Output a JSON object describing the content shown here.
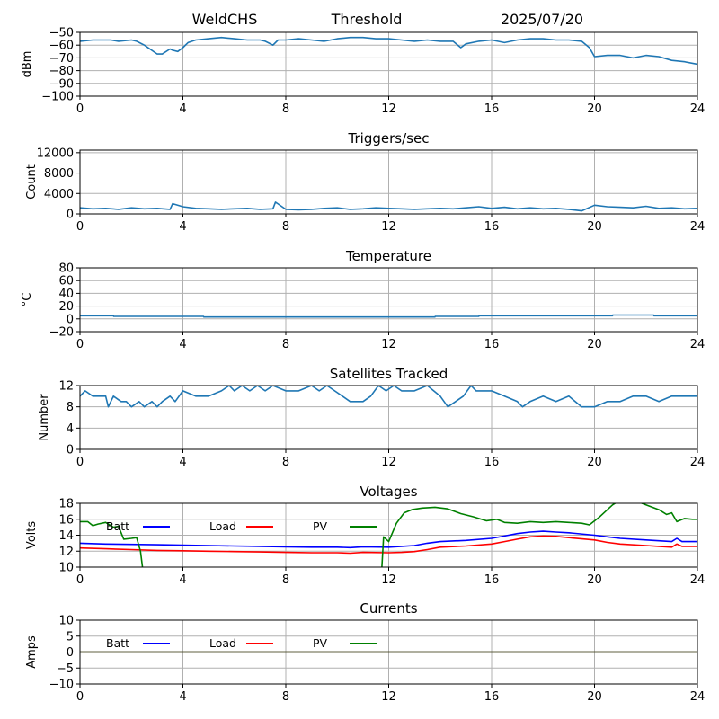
{
  "header": {
    "left": "WeldCHS",
    "center": "Threshold",
    "right": "2025/07/20"
  },
  "colors": {
    "series_blue": "#1f77b4",
    "batt": "#0000ff",
    "load": "#ff0000",
    "pv": "#008000",
    "grid": "#b0b0b0"
  },
  "chart_data": [
    {
      "type": "line",
      "title": "",
      "ylabel": "dBm",
      "ylim": [
        -100,
        -50
      ],
      "yticks": [
        -50,
        -60,
        -70,
        -80,
        -90,
        -100
      ],
      "xlim": [
        0,
        24
      ],
      "xticks": [
        0,
        4,
        8,
        12,
        16,
        20,
        24
      ],
      "grid": true,
      "series": [
        {
          "x": [
            0,
            0.5,
            1,
            1.2,
            1.5,
            2,
            2.2,
            2.5,
            3,
            3.2,
            3.5,
            3.6,
            3.8,
            4,
            4.2,
            4.5,
            5,
            5.5,
            6,
            6.5,
            7,
            7.2,
            7.5,
            7.7,
            8,
            8.5,
            9,
            9.5,
            10,
            10.5,
            11,
            11.5,
            12,
            12.5,
            13,
            13.5,
            14,
            14.5,
            14.8,
            15,
            15.5,
            16,
            16.5,
            17,
            17.5,
            18,
            18.5,
            19,
            19.5,
            19.8,
            20,
            20.5,
            21,
            21.5,
            22,
            22.5,
            23,
            23.5,
            24
          ],
          "values": [
            -57,
            -56,
            -56,
            -56,
            -57,
            -56,
            -57,
            -60,
            -67,
            -67,
            -63,
            -64,
            -65,
            -62,
            -58,
            -56,
            -55,
            -54,
            -55,
            -56,
            -56,
            -57,
            -60,
            -56,
            -56,
            -55,
            -56,
            -57,
            -55,
            -54,
            -54,
            -55,
            -55,
            -56,
            -57,
            -56,
            -57,
            -57,
            -62,
            -59,
            -57,
            -56,
            -58,
            -56,
            -55,
            -55,
            -56,
            -56,
            -57,
            -62,
            -69,
            -68,
            -68,
            -70,
            -68,
            -69,
            -72,
            -73,
            -75
          ]
        }
      ]
    },
    {
      "type": "line",
      "title": "Triggers/sec",
      "ylabel": "Count",
      "ylim": [
        0,
        12500
      ],
      "yticks": [
        0,
        4000,
        8000,
        12000
      ],
      "xlim": [
        0,
        24
      ],
      "xticks": [
        0,
        4,
        8,
        12,
        16,
        20,
        24
      ],
      "grid": true,
      "series": [
        {
          "x": [
            0,
            0.5,
            1,
            1.5,
            2,
            2.5,
            3,
            3.5,
            3.6,
            4,
            4.5,
            5,
            5.5,
            6,
            6.5,
            7,
            7.5,
            7.6,
            8,
            8.5,
            9,
            9.5,
            10,
            10.5,
            11,
            11.5,
            12,
            12.5,
            13,
            13.5,
            14,
            14.5,
            15,
            15.5,
            16,
            16.5,
            17,
            17.5,
            18,
            18.5,
            19,
            19.5,
            20,
            20.5,
            21,
            21.5,
            22,
            22.5,
            23,
            23.5,
            24
          ],
          "values": [
            1200,
            1000,
            1100,
            900,
            1200,
            1000,
            1100,
            900,
            2000,
            1400,
            1100,
            1000,
            900,
            1000,
            1100,
            900,
            1000,
            2300,
            900,
            800,
            900,
            1100,
            1200,
            900,
            1000,
            1200,
            1100,
            1000,
            900,
            1000,
            1100,
            1000,
            1200,
            1400,
            1100,
            1300,
            1000,
            1200,
            1000,
            1100,
            900,
            600,
            1700,
            1400,
            1300,
            1200,
            1500,
            1100,
            1200,
            1000,
            1100
          ]
        }
      ]
    },
    {
      "type": "line",
      "title": "Temperature",
      "ylabel": "°C",
      "ylim": [
        -20,
        80
      ],
      "yticks": [
        -20,
        0,
        20,
        40,
        60,
        80
      ],
      "xlim": [
        0,
        24
      ],
      "xticks": [
        0,
        4,
        8,
        12,
        16,
        20,
        24
      ],
      "grid": true,
      "series": [
        {
          "x": [
            0,
            1.3,
            1.31,
            4.8,
            4.81,
            13.8,
            13.81,
            15.5,
            15.51,
            20.7,
            20.71,
            22.3,
            22.31,
            24
          ],
          "values": [
            5,
            5,
            4,
            4,
            3,
            3,
            4,
            4,
            5,
            5,
            6,
            6,
            5,
            5
          ]
        }
      ]
    },
    {
      "type": "line",
      "title": "Satellites Tracked",
      "ylabel": "Number",
      "ylim": [
        0,
        12
      ],
      "yticks": [
        0,
        4,
        8,
        12
      ],
      "xlim": [
        0,
        24
      ],
      "xticks": [
        0,
        4,
        8,
        12,
        16,
        20,
        24
      ],
      "grid": true,
      "series": [
        {
          "x": [
            0,
            0.2,
            0.5,
            1,
            1.1,
            1.3,
            1.6,
            1.8,
            2,
            2.3,
            2.5,
            2.8,
            3,
            3.2,
            3.5,
            3.7,
            4,
            4.5,
            5,
            5.5,
            5.8,
            6,
            6.3,
            6.6,
            6.9,
            7.2,
            7.5,
            8,
            8.5,
            9,
            9.3,
            9.6,
            9.9,
            10.2,
            10.5,
            11,
            11.3,
            11.6,
            11.9,
            12.2,
            12.5,
            13,
            13.5,
            14,
            14.3,
            14.6,
            14.9,
            15.2,
            15.4,
            15.6,
            16,
            16.5,
            17,
            17.2,
            17.5,
            18,
            18.5,
            19,
            19.5,
            20,
            20.5,
            21,
            21.5,
            22,
            22.5,
            23,
            23.5,
            24
          ],
          "values": [
            10,
            11,
            10,
            10,
            8,
            10,
            9,
            9,
            8,
            9,
            8,
            9,
            8,
            9,
            10,
            9,
            11,
            10,
            10,
            11,
            12,
            11,
            12,
            11,
            12,
            11,
            12,
            11,
            11,
            12,
            11,
            12,
            11,
            10,
            9,
            9,
            10,
            12,
            11,
            12,
            11,
            11,
            12,
            10,
            8,
            9,
            10,
            12,
            11,
            11,
            11,
            10,
            9,
            8,
            9,
            10,
            9,
            10,
            8,
            8,
            9,
            9,
            10,
            10,
            9,
            10,
            10,
            10
          ]
        }
      ]
    },
    {
      "type": "line",
      "title": "Voltages",
      "ylabel": "Volts",
      "ylim": [
        10,
        18
      ],
      "yticks": [
        10,
        12,
        14,
        16,
        18
      ],
      "xlim": [
        0,
        24
      ],
      "xticks": [
        0,
        4,
        8,
        12,
        16,
        20,
        24
      ],
      "grid": true,
      "legend": {
        "placement": "top-left",
        "layout": "horizontal",
        "entries": [
          "Batt",
          "Load",
          "PV"
        ]
      },
      "series": [
        {
          "name": "Batt",
          "color": "#0000ff",
          "x": [
            0,
            1,
            2,
            3,
            4,
            5,
            6,
            7,
            8,
            9,
            10,
            10.5,
            11,
            12,
            12.5,
            13,
            13.5,
            14,
            15,
            16,
            16.5,
            17,
            17.5,
            18,
            18.5,
            19,
            20,
            20.5,
            21,
            22,
            22.5,
            23,
            23.2,
            23.4,
            24
          ],
          "values": [
            13.0,
            12.9,
            12.85,
            12.8,
            12.75,
            12.7,
            12.65,
            12.6,
            12.55,
            12.5,
            12.5,
            12.45,
            12.55,
            12.5,
            12.6,
            12.7,
            13.0,
            13.2,
            13.35,
            13.6,
            13.9,
            14.2,
            14.4,
            14.5,
            14.4,
            14.3,
            14.0,
            13.8,
            13.6,
            13.4,
            13.3,
            13.2,
            13.6,
            13.2,
            13.2
          ]
        },
        {
          "name": "Load",
          "color": "#ff0000",
          "x": [
            0,
            1,
            2,
            3,
            4,
            5,
            6,
            7,
            8,
            9,
            10,
            10.5,
            11,
            12,
            12.5,
            13,
            13.5,
            14,
            15,
            16,
            16.5,
            17,
            17.5,
            18,
            18.5,
            19,
            20,
            20.5,
            21,
            22,
            22.5,
            23,
            23.2,
            23.4,
            24
          ],
          "values": [
            12.4,
            12.3,
            12.2,
            12.1,
            12.05,
            12.0,
            11.95,
            11.9,
            11.85,
            11.8,
            11.8,
            11.75,
            11.85,
            11.8,
            11.85,
            11.95,
            12.2,
            12.5,
            12.65,
            12.9,
            13.2,
            13.5,
            13.8,
            13.9,
            13.85,
            13.7,
            13.4,
            13.1,
            12.9,
            12.7,
            12.6,
            12.5,
            12.9,
            12.6,
            12.6
          ]
        },
        {
          "name": "PV",
          "color": "#008000",
          "x": [
            0,
            0.3,
            0.5,
            0.7,
            1,
            1.3,
            1.5,
            1.7,
            2,
            2.2,
            2.35,
            2.45,
            2.55,
            11.7,
            11.8,
            12.0,
            12.3,
            12.6,
            12.9,
            13.3,
            13.8,
            14.3,
            14.8,
            15.3,
            15.8,
            16.2,
            16.5,
            17,
            17.5,
            18,
            18.5,
            19,
            19.5,
            19.8,
            20.2,
            20.7,
            21.1,
            21.6,
            22,
            22.5,
            22.8,
            23,
            23.2,
            23.5,
            23.8,
            24
          ],
          "values": [
            15.7,
            15.7,
            15.2,
            15.4,
            15.6,
            15.0,
            15.1,
            13.5,
            13.6,
            13.7,
            12.0,
            9.5,
            8.0,
            8.0,
            13.8,
            13.2,
            15.5,
            16.8,
            17.2,
            17.4,
            17.5,
            17.3,
            16.7,
            16.3,
            15.8,
            16.0,
            15.6,
            15.5,
            15.7,
            15.6,
            15.7,
            15.6,
            15.5,
            15.3,
            16.3,
            17.8,
            18.6,
            18.3,
            17.8,
            17.2,
            16.6,
            16.8,
            15.7,
            16.1,
            16.0,
            16.0
          ]
        }
      ]
    },
    {
      "type": "line",
      "title": "Currents",
      "ylabel": "Amps",
      "ylim": [
        -10,
        10
      ],
      "yticks": [
        -10,
        -5,
        0,
        5,
        10
      ],
      "xlim": [
        0,
        24
      ],
      "xticks": [
        0,
        4,
        8,
        12,
        16,
        20,
        24
      ],
      "grid": true,
      "legend": {
        "placement": "top-left",
        "layout": "horizontal",
        "entries": [
          "Batt",
          "Load",
          "PV"
        ]
      },
      "series": [
        {
          "name": "Batt",
          "color": "#0000ff",
          "x": [
            0,
            24
          ],
          "values": [
            0,
            0
          ]
        },
        {
          "name": "Load",
          "color": "#ff0000",
          "x": [
            0,
            24
          ],
          "values": [
            0,
            0
          ]
        },
        {
          "name": "PV",
          "color": "#008000",
          "x": [
            0,
            24
          ],
          "values": [
            0,
            0
          ]
        }
      ]
    }
  ]
}
